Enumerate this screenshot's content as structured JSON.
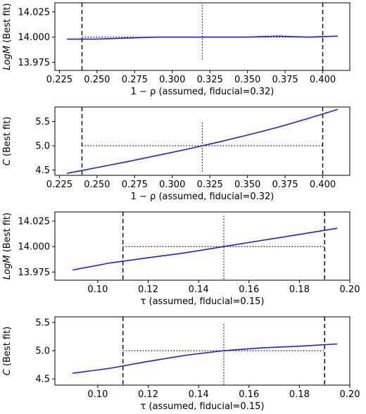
{
  "chart_data": [
    {
      "type": "line",
      "xlabel": "1 − ρ (assumed, fiducial=0.32)",
      "ylabel": "LogM (Best fit)",
      "xlim": [
        0.222,
        0.418
      ],
      "ylim": [
        13.967,
        14.034
      ],
      "xticks": [
        0.225,
        0.25,
        0.275,
        0.3,
        0.325,
        0.35,
        0.375,
        0.4
      ],
      "xtick_labels": [
        "0.225",
        "0.250",
        "0.275",
        "0.300",
        "0.325",
        "0.350",
        "0.375",
        "0.400"
      ],
      "yticks": [
        13.975,
        14.0,
        14.025
      ],
      "ytick_labels": [
        "13.975",
        "14.000",
        "14.025"
      ],
      "x": [
        0.23,
        0.25,
        0.27,
        0.29,
        0.31,
        0.33,
        0.35,
        0.37,
        0.39,
        0.41
      ],
      "y": [
        13.998,
        13.998,
        13.999,
        14.0,
        14.0,
        14.0,
        14.0,
        14.001,
        14.0,
        14.001
      ],
      "vlines_dashed": [
        0.24,
        0.4
      ],
      "vline_dotted": {
        "x": 0.32,
        "y": [
          13.978,
          14.032
        ]
      },
      "hline_dotted": {
        "y": 14.0,
        "x": [
          0.24,
          0.4
        ]
      }
    },
    {
      "type": "line",
      "xlabel": "1 − ρ (assumed, fiducial=0.32)",
      "ylabel": "C (Best fit)",
      "xlim": [
        0.222,
        0.418
      ],
      "ylim": [
        4.39,
        5.8
      ],
      "xticks": [
        0.225,
        0.25,
        0.275,
        0.3,
        0.325,
        0.35,
        0.375,
        0.4
      ],
      "xtick_labels": [
        "0.225",
        "0.250",
        "0.275",
        "0.300",
        "0.325",
        "0.350",
        "0.375",
        "0.400"
      ],
      "yticks": [
        4.5,
        5.0,
        5.5
      ],
      "ytick_labels": [
        "4.5",
        "5.0",
        "5.5"
      ],
      "x": [
        0.23,
        0.25,
        0.27,
        0.29,
        0.31,
        0.32,
        0.33,
        0.35,
        0.37,
        0.39,
        0.41
      ],
      "y": [
        4.43,
        4.55,
        4.67,
        4.8,
        4.93,
        5.0,
        5.07,
        5.22,
        5.38,
        5.56,
        5.75
      ],
      "vlines_dashed": [
        0.24,
        0.4
      ],
      "vline_dotted": {
        "x": 0.32,
        "y": [
          4.47,
          5.5
        ]
      },
      "hline_dotted": {
        "y": 5.0,
        "x": [
          0.24,
          0.4
        ]
      }
    },
    {
      "type": "line",
      "xlabel": "τ (assumed, fiducial=0.15)",
      "ylabel": "LogM (Best fit)",
      "xlim": [
        0.083,
        0.2
      ],
      "ylim": [
        13.967,
        14.034
      ],
      "xticks": [
        0.1,
        0.12,
        0.14,
        0.16,
        0.18,
        0.2
      ],
      "xtick_labels": [
        "0.10",
        "0.12",
        "0.14",
        "0.16",
        "0.18",
        "0.20"
      ],
      "yticks": [
        13.975,
        14.0,
        14.025
      ],
      "ytick_labels": [
        "13.975",
        "14.000",
        "14.025"
      ],
      "x": [
        0.09,
        0.105,
        0.12,
        0.135,
        0.15,
        0.165,
        0.18,
        0.195
      ],
      "y": [
        13.977,
        13.984,
        13.989,
        13.994,
        14.0,
        14.006,
        14.012,
        14.018
      ],
      "vlines_dashed": [
        0.11,
        0.19
      ],
      "vline_dotted": {
        "x": 0.15,
        "y": [
          13.968,
          14.032
        ]
      },
      "hline_dotted": {
        "y": 14.0,
        "x": [
          0.11,
          0.19
        ]
      }
    },
    {
      "type": "line",
      "xlabel": "τ (assumed, fiducial=0.15)",
      "ylabel": "C (Best fit)",
      "xlim": [
        0.083,
        0.2
      ],
      "ylim": [
        4.39,
        5.6
      ],
      "xticks": [
        0.1,
        0.12,
        0.14,
        0.16,
        0.18,
        0.2
      ],
      "xtick_labels": [
        "0.10",
        "0.12",
        "0.14",
        "0.16",
        "0.18",
        "0.20"
      ],
      "yticks": [
        4.5,
        5.0,
        5.5
      ],
      "ytick_labels": [
        "4.5",
        "5.0",
        "5.5"
      ],
      "x": [
        0.09,
        0.105,
        0.12,
        0.135,
        0.15,
        0.165,
        0.18,
        0.195
      ],
      "y": [
        4.6,
        4.69,
        4.81,
        4.92,
        5.0,
        5.05,
        5.08,
        5.12
      ],
      "vlines_dashed": [
        0.11,
        0.19
      ],
      "vline_dotted": {
        "x": 0.15,
        "y": [
          4.4,
          5.47
        ]
      },
      "hline_dotted": {
        "y": 5.0,
        "x": [
          0.11,
          0.19
        ]
      }
    }
  ],
  "colors": {
    "series": "#1f1fd6",
    "frame": "#000000"
  }
}
